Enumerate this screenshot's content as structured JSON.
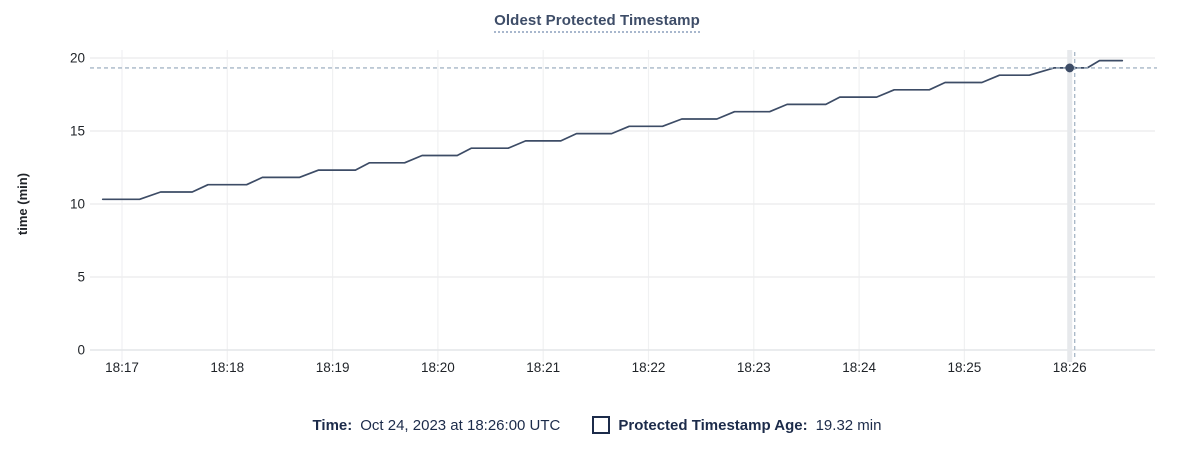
{
  "colors": {
    "line": "#3d4c66",
    "point": "#3d4c66",
    "crosshair": "#a6b6c6",
    "hover_band": "#e7e9ec",
    "grid_h": "#ededef",
    "grid_v": "#f0f1f2",
    "axis_line": "#e4e6e8",
    "tick_text": "#1f2328",
    "title_text": "#3e4d68",
    "legend_text": "#1c2b4a"
  },
  "chart_data": {
    "type": "line",
    "title": "Oldest Protected Timestamp",
    "xlabel": "",
    "ylabel": "time (min)",
    "ylim": [
      0,
      20
    ],
    "y_ticks": [
      0,
      5,
      10,
      15,
      20
    ],
    "x_ticks": [
      "18:17",
      "18:18",
      "18:19",
      "18:20",
      "18:21",
      "18:22",
      "18:23",
      "18:24",
      "18:25",
      "18:26"
    ],
    "grid": true,
    "legend_position": "bottom",
    "series": [
      {
        "name": "Protected Timestamp Age",
        "unit": "min",
        "points": [
          {
            "t": "18:16:49",
            "v": 10.32
          },
          {
            "t": "18:17:10",
            "v": 10.32
          },
          {
            "t": "18:17:22",
            "v": 10.82
          },
          {
            "t": "18:17:40",
            "v": 10.82
          },
          {
            "t": "18:17:49",
            "v": 11.32
          },
          {
            "t": "18:18:11",
            "v": 11.32
          },
          {
            "t": "18:18:20",
            "v": 11.82
          },
          {
            "t": "18:18:41",
            "v": 11.82
          },
          {
            "t": "18:18:52",
            "v": 12.32
          },
          {
            "t": "18:19:13",
            "v": 12.32
          },
          {
            "t": "18:19:21",
            "v": 12.82
          },
          {
            "t": "18:19:41",
            "v": 12.82
          },
          {
            "t": "18:19:51",
            "v": 13.32
          },
          {
            "t": "18:20:11",
            "v": 13.32
          },
          {
            "t": "18:20:19",
            "v": 13.82
          },
          {
            "t": "18:20:40",
            "v": 13.82
          },
          {
            "t": "18:20:50",
            "v": 14.32
          },
          {
            "t": "18:21:10",
            "v": 14.32
          },
          {
            "t": "18:21:19",
            "v": 14.82
          },
          {
            "t": "18:21:39",
            "v": 14.82
          },
          {
            "t": "18:21:49",
            "v": 15.32
          },
          {
            "t": "18:22:08",
            "v": 15.32
          },
          {
            "t": "18:22:19",
            "v": 15.82
          },
          {
            "t": "18:22:39",
            "v": 15.82
          },
          {
            "t": "18:22:49",
            "v": 16.32
          },
          {
            "t": "18:23:09",
            "v": 16.32
          },
          {
            "t": "18:23:19",
            "v": 16.82
          },
          {
            "t": "18:23:41",
            "v": 16.82
          },
          {
            "t": "18:23:49",
            "v": 17.32
          },
          {
            "t": "18:24:10",
            "v": 17.32
          },
          {
            "t": "18:24:20",
            "v": 17.82
          },
          {
            "t": "18:24:40",
            "v": 17.82
          },
          {
            "t": "18:24:49",
            "v": 18.32
          },
          {
            "t": "18:25:10",
            "v": 18.32
          },
          {
            "t": "18:25:20",
            "v": 18.82
          },
          {
            "t": "18:25:37",
            "v": 18.82
          },
          {
            "t": "18:25:51",
            "v": 19.32
          },
          {
            "t": "18:26:10",
            "v": 19.32
          },
          {
            "t": "18:26:17",
            "v": 19.82
          },
          {
            "t": "18:26:30",
            "v": 19.82
          }
        ]
      }
    ],
    "hover": {
      "t": "18:26:00",
      "v": 19.32
    }
  },
  "legend": {
    "time_label": "Time:",
    "time_value": "Oct 24, 2023 at 18:26:00 UTC",
    "series_label": "Protected Timestamp Age:",
    "series_value": "19.32 min"
  }
}
